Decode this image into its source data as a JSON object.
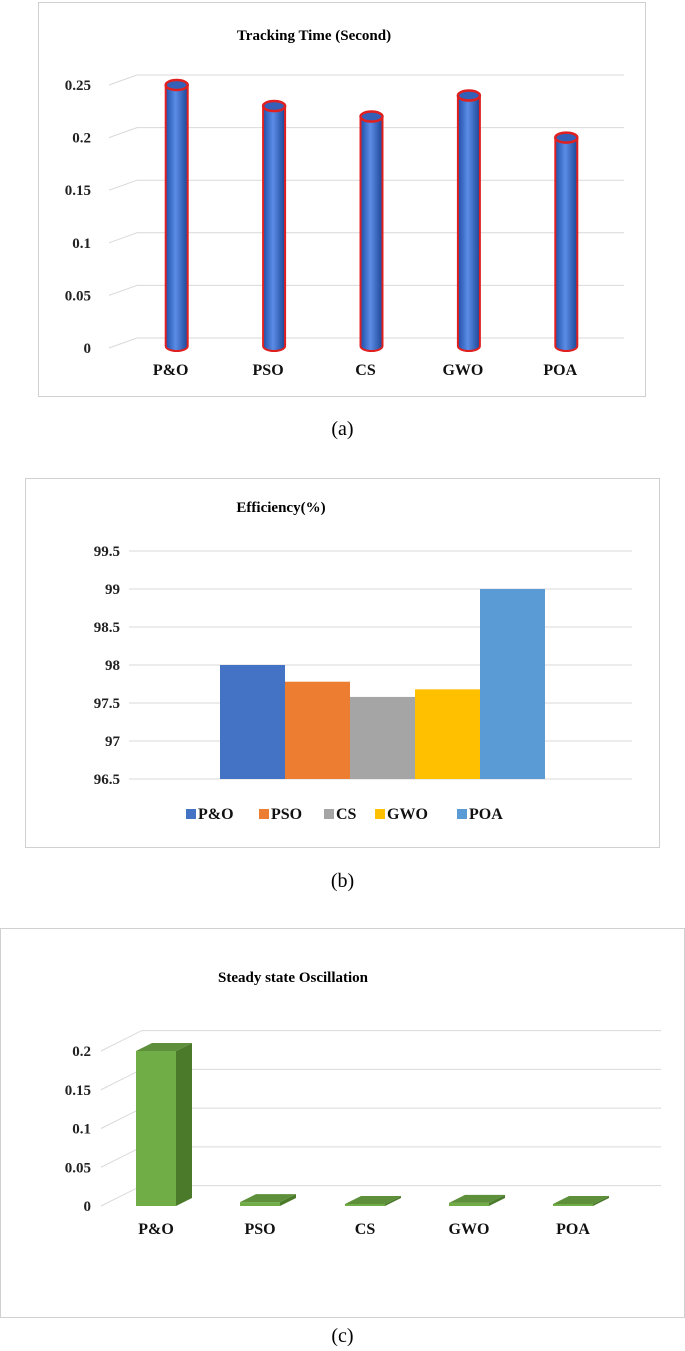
{
  "chart_data": [
    {
      "type": "bar",
      "title": "Tracking Time (Second)",
      "categories": [
        "P&O",
        "PSO",
        "CS",
        "GWO",
        "POA"
      ],
      "values": [
        0.25,
        0.23,
        0.22,
        0.24,
        0.2
      ],
      "ylim": [
        0,
        0.25
      ],
      "yticks": [
        "0",
        "0.05",
        "0.1",
        "0.15",
        "0.2",
        "0.25"
      ],
      "ytick_values": [
        0,
        0.05,
        0.1,
        0.15,
        0.2,
        0.25
      ],
      "grid": true,
      "style": "cylinder",
      "colors": {
        "fill": "#3a6fd0",
        "edge": "#e02020"
      },
      "caption": "(a)"
    },
    {
      "type": "bar",
      "title": "Efficiency(%)",
      "categories": [
        "P&O",
        "PSO",
        "CS",
        "GWO",
        "POA"
      ],
      "values": [
        98.0,
        97.78,
        97.58,
        97.68,
        99.0
      ],
      "ylim": [
        96.5,
        99.5
      ],
      "yticks": [
        "96.5",
        "97",
        "97.5",
        "98",
        "98.5",
        "99",
        "99.5"
      ],
      "ytick_values": [
        96.5,
        97,
        97.5,
        98,
        98.5,
        99,
        99.5
      ],
      "grid": true,
      "legend": "bottom",
      "colors": [
        "#4472c4",
        "#ed7d31",
        "#a5a5a5",
        "#ffc000",
        "#5b9bd5"
      ],
      "caption": "(b)"
    },
    {
      "type": "bar",
      "title": "Steady state Oscillation",
      "categories": [
        "P&O",
        "PSO",
        "CS",
        "GWO",
        "POA"
      ],
      "values": [
        0.2,
        0.005,
        0.0,
        0.004,
        0.0
      ],
      "ylim": [
        0,
        0.2
      ],
      "yticks": [
        "0",
        "0.05",
        "0.1",
        "0.15",
        "0.2"
      ],
      "ytick_values": [
        0,
        0.05,
        0.1,
        0.15,
        0.2
      ],
      "grid": true,
      "style": "3d",
      "colors": {
        "front": "#70ad47",
        "side": "#4a7a2a",
        "top": "#5e8f3a"
      },
      "caption": "(c)"
    }
  ]
}
